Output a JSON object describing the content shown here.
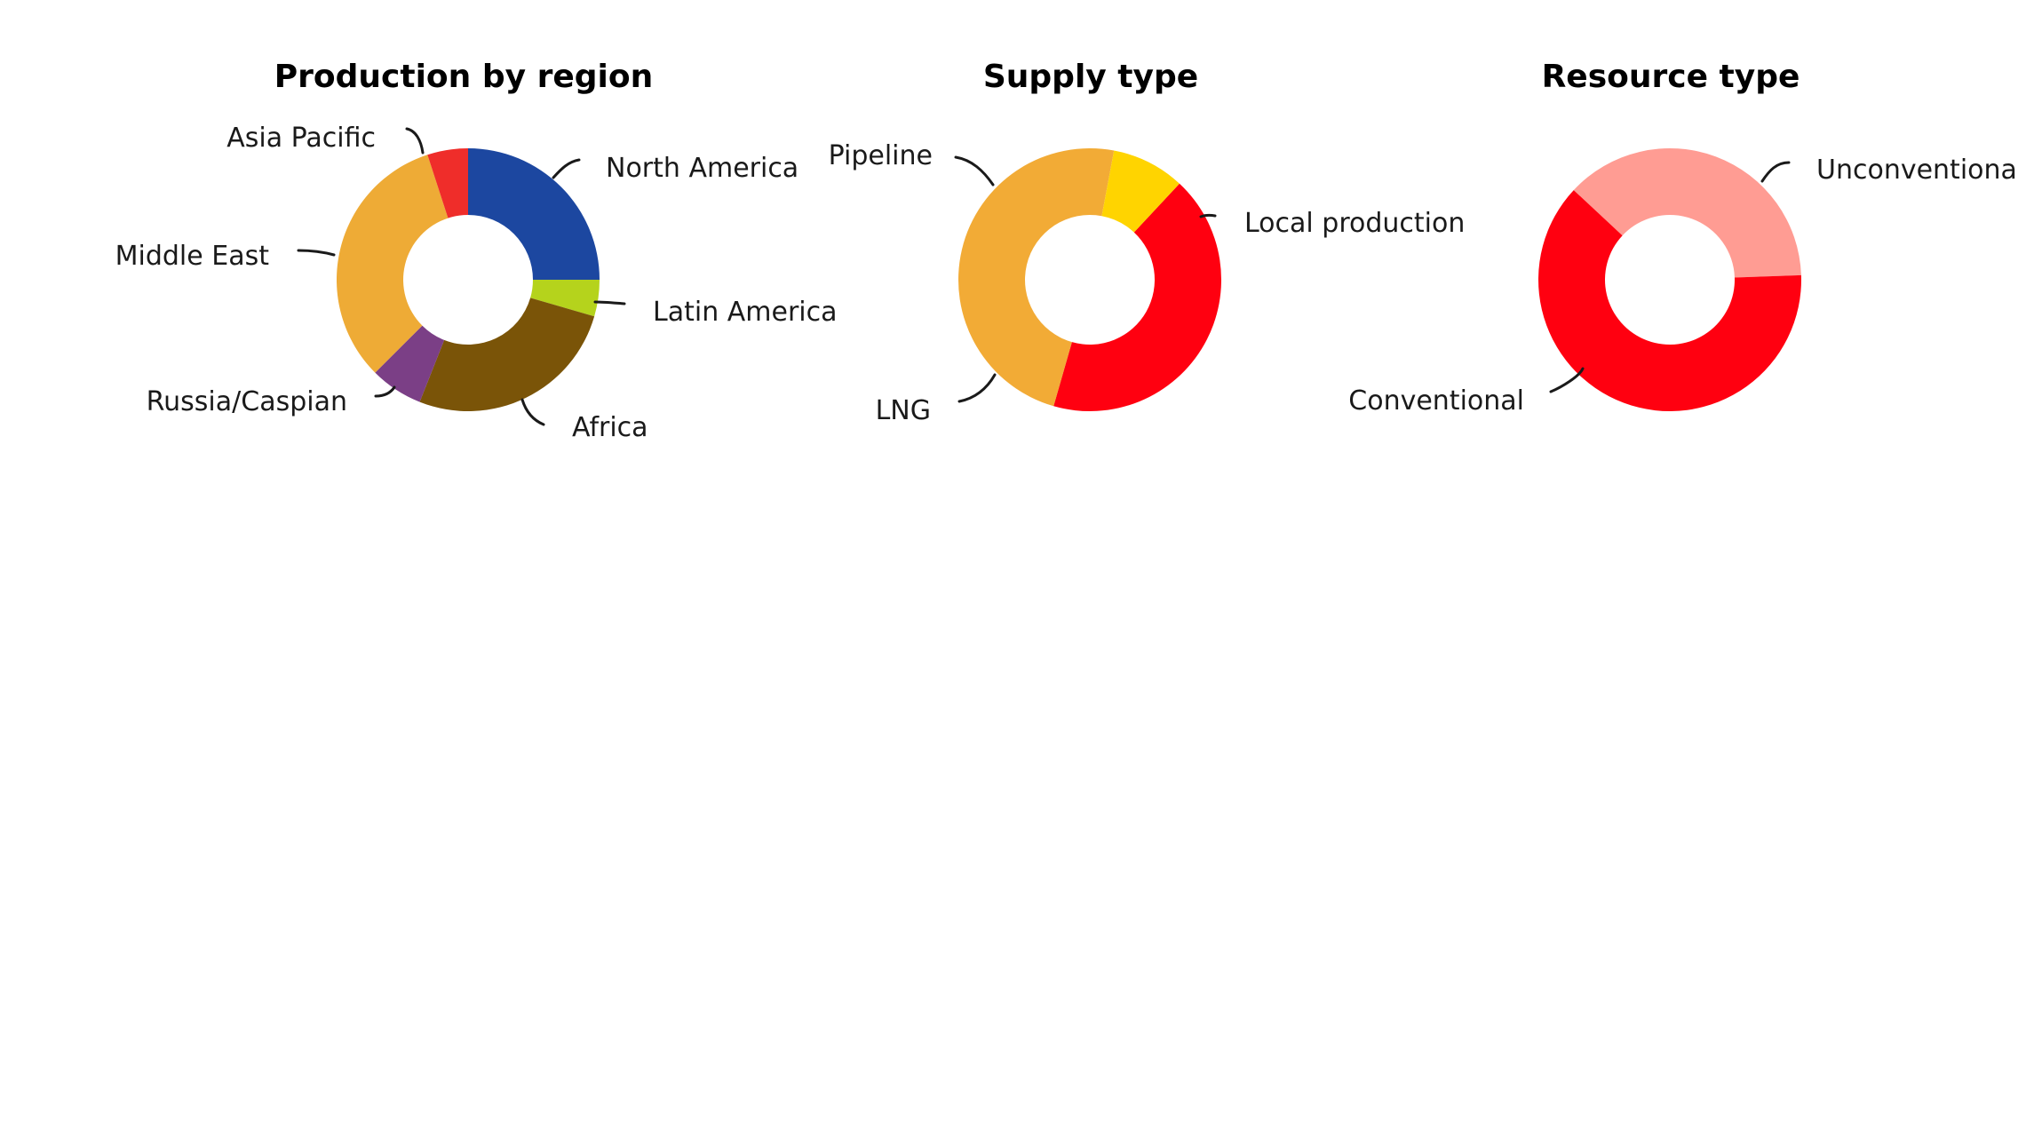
{
  "chart_data": [
    {
      "type": "pie",
      "title": "Production by region",
      "start_label_angle": 0,
      "series": [
        {
          "name": "",
          "slices": [
            {
              "label": "North America",
              "value": 25.0,
              "color": "#1c47a0"
            },
            {
              "label": "Latin America",
              "value": 4.5,
              "color": "#b5d31c"
            },
            {
              "label": "Africa",
              "value": 26.5,
              "color": "#7a5408"
            },
            {
              "label": "Russia/Caspian",
              "value": 6.5,
              "color": "#7b3f86"
            },
            {
              "label": "Middle East",
              "value": 32.5,
              "color": "#eeab36"
            },
            {
              "label": "Asia Pacific",
              "value": 5.0,
              "color": "#ef2d2a"
            }
          ]
        }
      ]
    },
    {
      "type": "pie",
      "title": "Supply type",
      "series": [
        {
          "name": "",
          "slices": [
            {
              "label": "Local production",
              "value": 42.5,
              "color": "#ff0010"
            },
            {
              "label": "LNG",
              "value": 48.5,
              "color": "#f2ab36"
            },
            {
              "label": "Pipeline",
              "value": 9.0,
              "color": "#ffd400"
            }
          ]
        }
      ]
    },
    {
      "type": "pie",
      "title": "Resource type",
      "series": [
        {
          "name": "",
          "slices": [
            {
              "label": "Unconventional",
              "value": 37.5,
              "color": "#ff9c93"
            },
            {
              "label": "Conventional",
              "value": 62.5,
              "color": "#ff0010"
            }
          ]
        }
      ]
    }
  ]
}
